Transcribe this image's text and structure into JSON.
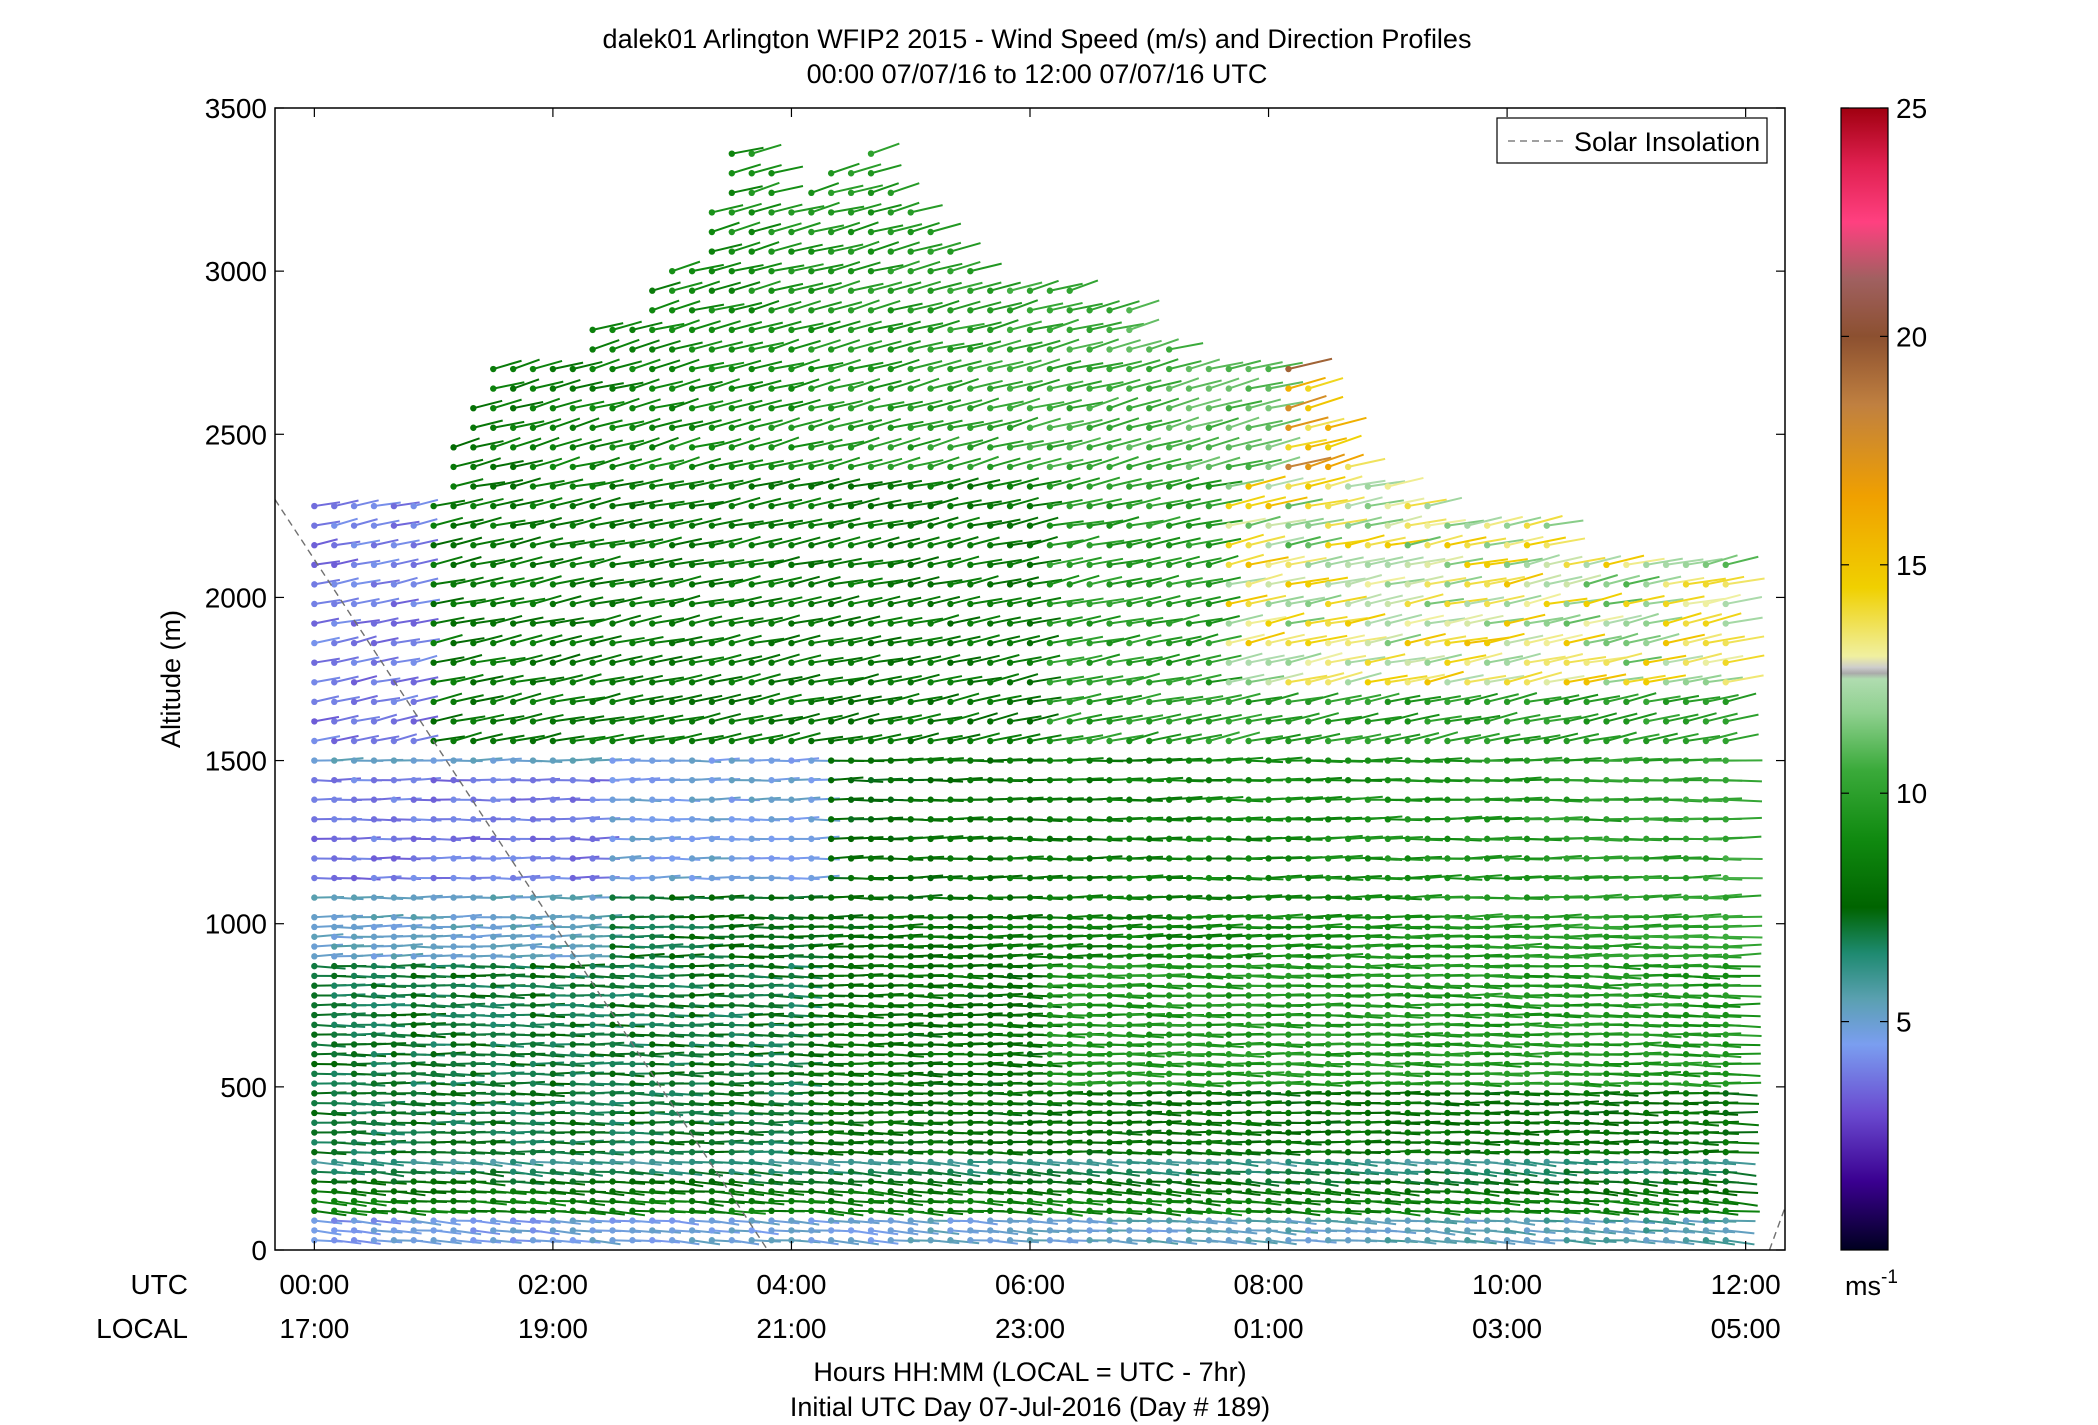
{
  "chart_data": {
    "type": "scatter",
    "title": "dalek01 Arlington WFIP2 2015 - Wind Speed (m/s) and Direction Profiles",
    "subtitle": "00:00 07/07/16 to 12:00 07/07/16  UTC",
    "ylabel": "Altitude (m)",
    "xlabel": "Hours HH:MM  (LOCAL = UTC - 7hr)",
    "xlabel2": "Initial UTC Day 07-Jul-2016 (Day # 189)",
    "ylim": [
      0,
      3500
    ],
    "xlim_hours": [
      -0.33,
      12.33
    ],
    "yticks": [
      0,
      500,
      1000,
      1500,
      2000,
      2500,
      3000,
      3500
    ],
    "xticks_utc": [
      "00:00",
      "02:00",
      "04:00",
      "06:00",
      "08:00",
      "10:00",
      "12:00"
    ],
    "xticks_local": [
      "17:00",
      "19:00",
      "21:00",
      "23:00",
      "01:00",
      "03:00",
      "05:00"
    ],
    "x_row_label_utc": "UTC",
    "x_row_label_local": "LOCAL",
    "legend": [
      {
        "name": "Solar Insolation",
        "style": "dashed",
        "color": "#808080"
      }
    ],
    "legend_position": "top-right",
    "colorbar": {
      "ticks": [
        5,
        10,
        15,
        20,
        25
      ],
      "range": [
        0,
        25
      ],
      "unit_label": "ms",
      "unit_exponent": "-1"
    },
    "solar_insolation": [
      {
        "x": -0.33,
        "y": 2300
      },
      {
        "x": 3.8,
        "y": 0
      },
      {
        "x": 12.2,
        "y": 0
      },
      {
        "x": 12.33,
        "y": 130
      }
    ],
    "profile_times": [
      0,
      0.167,
      0.333,
      0.5,
      0.667,
      0.833,
      1,
      1.167,
      1.333,
      1.5,
      1.667,
      1.833,
      2,
      2.167,
      2.333,
      2.5,
      2.667,
      2.833,
      3,
      3.167,
      3.333,
      3.5,
      3.667,
      3.833,
      4,
      4.167,
      4.333,
      4.5,
      4.667,
      4.833,
      5,
      5.167,
      5.333,
      5.5,
      5.667,
      5.833,
      6,
      6.167,
      6.333,
      6.5,
      6.667,
      6.833,
      7,
      7.167,
      7.333,
      7.5,
      7.667,
      7.833,
      8,
      8.167,
      8.333,
      8.5,
      8.667,
      8.833,
      9,
      9.167,
      9.333,
      9.5,
      9.667,
      9.833,
      10,
      10.167,
      10.333,
      10.5,
      10.667,
      10.833,
      11,
      11.167,
      11.333,
      11.5,
      11.667,
      11.833
    ],
    "max_altitude_by_time": [
      2320,
      2320,
      2320,
      2320,
      2320,
      2320,
      2320,
      2500,
      2600,
      2710,
      2730,
      2730,
      2730,
      2740,
      2830,
      2830,
      2840,
      2980,
      3040,
      3040,
      3200,
      3400,
      3400,
      3330,
      3220,
      3280,
      3340,
      3350,
      3400,
      3240,
      3180,
      3150,
      3080,
      3000,
      2980,
      2960,
      2960,
      2970,
      2940,
      2920,
      2880,
      2880,
      2760,
      2760,
      2730,
      2730,
      2730,
      2730,
      2730,
      2730,
      2680,
      2560,
      2440,
      2360,
      2350,
      2310,
      2320,
      2270,
      2270,
      2270,
      2260,
      2230,
      2230,
      2150,
      2150,
      2150,
      2150,
      2150,
      2150,
      2150,
      2150,
      2150
    ],
    "layer_bands": [
      {
        "alt_range": [
          0,
          300
        ],
        "description": "low-level jet, green with blue near surface",
        "speed_ms": 6.5,
        "dir_deg": 285
      },
      {
        "alt_range": [
          300,
          900
        ],
        "description": "green westerly flow",
        "speed_ms": 7.5,
        "dir_deg": 275
      },
      {
        "alt_range": [
          900,
          1550
        ],
        "description": "blue/purple weak flow early, green later",
        "speed_ms": 4.5,
        "dir_deg": 270
      },
      {
        "alt_range": [
          1550,
          2400
        ],
        "description": "green southwesterly flow",
        "speed_ms": 8.5,
        "dir_deg": 245
      },
      {
        "alt_range": [
          2400,
          3400
        ],
        "description": "light green / yellow strong flow aloft",
        "speed_ms": 11,
        "dir_deg": 240
      }
    ]
  }
}
